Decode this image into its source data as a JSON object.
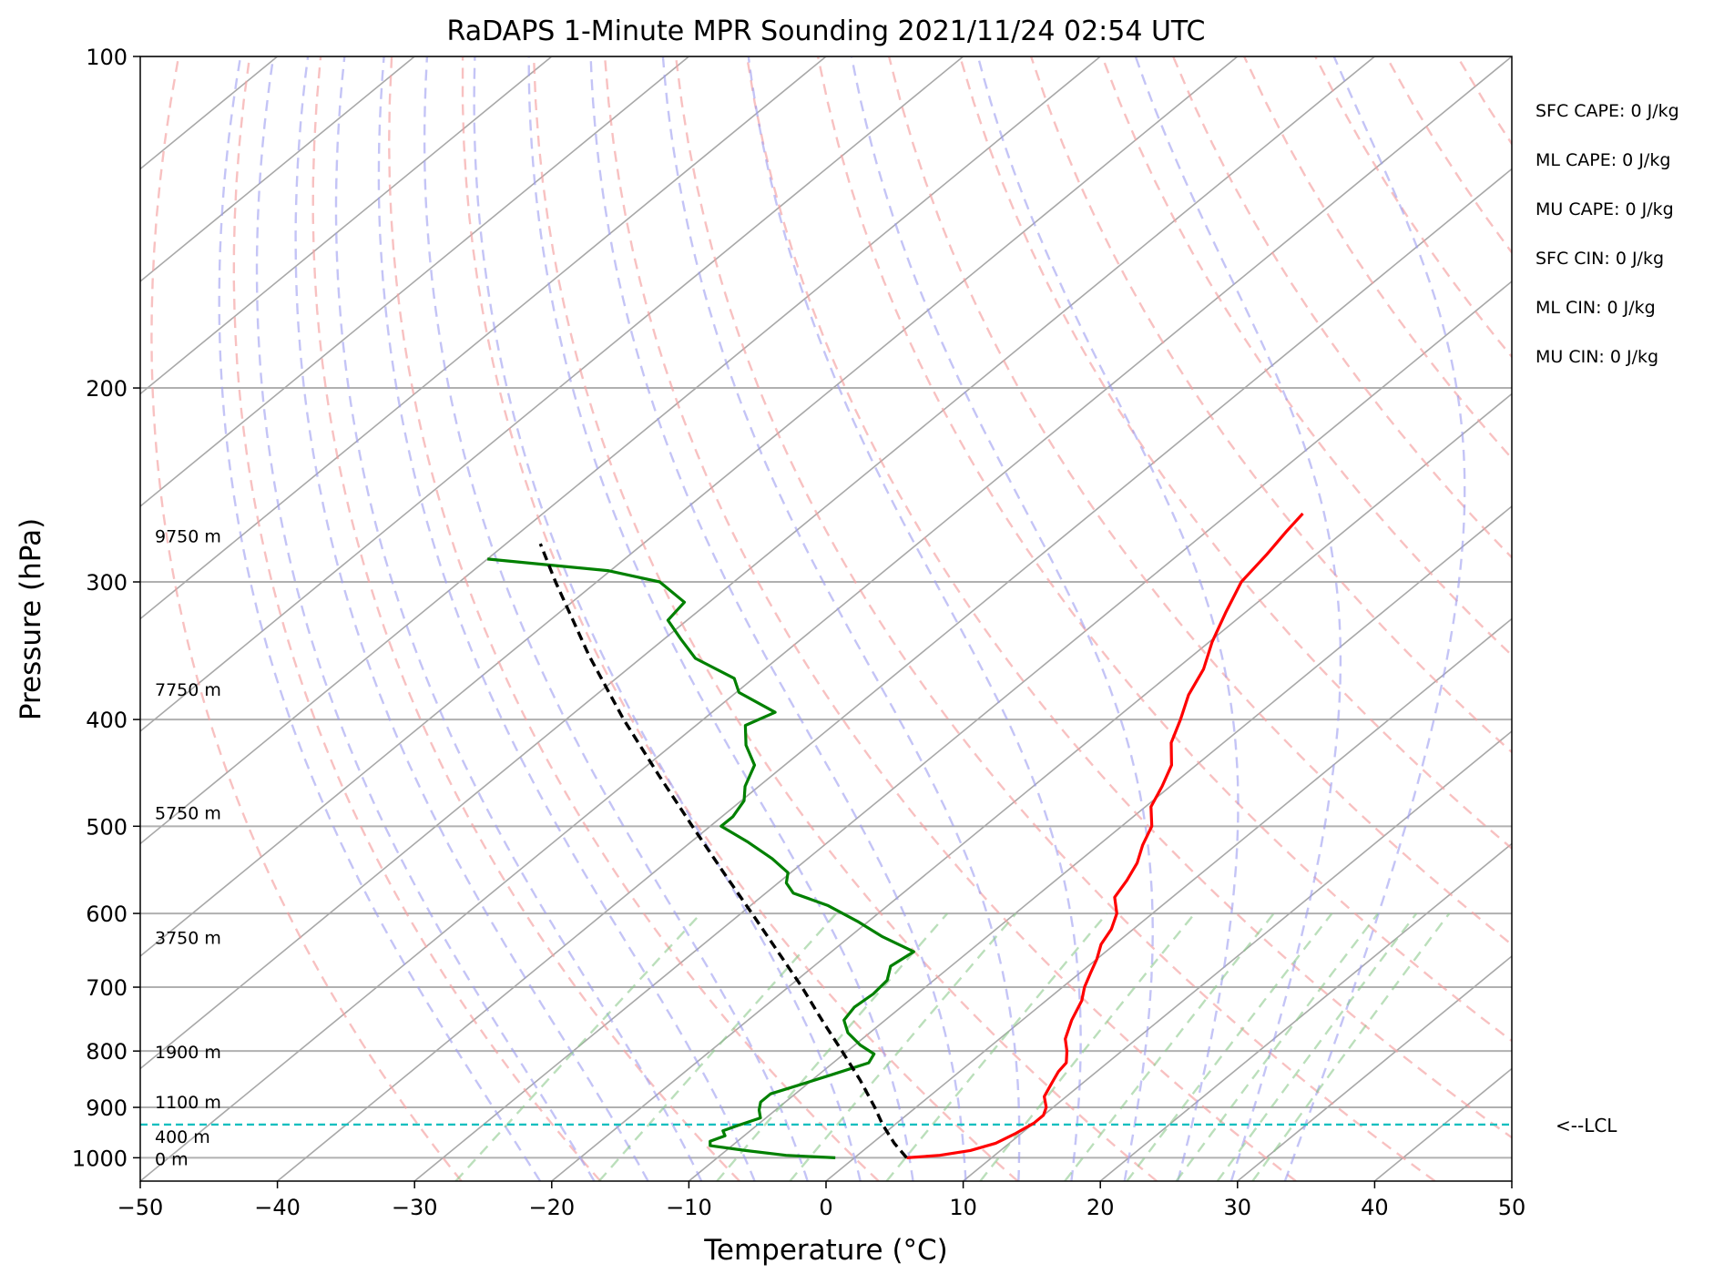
{
  "chart_data": {
    "type": "line",
    "title": "RaDAPS 1-Minute MPR Sounding 2021/11/24 02:54 UTC",
    "xlabel": "Temperature (°C)",
    "ylabel": "Pressure (hPa)",
    "xlim": [
      -50,
      50
    ],
    "ylim": [
      1050,
      100
    ],
    "y_scale": "log",
    "skew": true,
    "grid": true,
    "x_ticks": [
      "−50",
      "−40",
      "−30",
      "−20",
      "−10",
      "0",
      "10",
      "20",
      "30",
      "40",
      "50"
    ],
    "y_ticks": [
      "100",
      "200",
      "300",
      "400",
      "500",
      "600",
      "700",
      "800",
      "900",
      "1000"
    ],
    "height_labels": [
      {
        "p": 1000,
        "text": "0 m"
      },
      {
        "p": 955,
        "text": "400 m"
      },
      {
        "p": 888,
        "text": "1100 m"
      },
      {
        "p": 800,
        "text": "1900 m"
      },
      {
        "p": 630,
        "text": "3750 m"
      },
      {
        "p": 485,
        "text": "5750 m"
      },
      {
        "p": 375,
        "text": "7750 m"
      },
      {
        "p": 272,
        "text": "9750 m"
      }
    ],
    "indices": [
      "SFC CAPE: 0 J/kg",
      "ML CAPE: 0 J/kg",
      "MU CAPE: 0 J/kg",
      "SFC CIN: 0 J/kg",
      "ML CIN: 0 J/kg",
      "MU CIN: 0 J/kg"
    ],
    "lcl": {
      "p": 933,
      "label": "<--LCL"
    },
    "series": [
      {
        "color": "#ff0000",
        "points": [
          [
            1000,
            3.8
          ],
          [
            995,
            6.0
          ],
          [
            985,
            7.8
          ],
          [
            970,
            9.0
          ],
          [
            950,
            9.6
          ],
          [
            930,
            10.0
          ],
          [
            915,
            10.0
          ],
          [
            900,
            9.5
          ],
          [
            880,
            8.4
          ],
          [
            865,
            8.0
          ],
          [
            850,
            7.6
          ],
          [
            835,
            7.2
          ],
          [
            820,
            7.0
          ],
          [
            800,
            6.0
          ],
          [
            780,
            4.8
          ],
          [
            750,
            3.6
          ],
          [
            720,
            2.6
          ],
          [
            700,
            1.6
          ],
          [
            680,
            0.8
          ],
          [
            660,
            0.0
          ],
          [
            640,
            -1.0
          ],
          [
            620,
            -1.6
          ],
          [
            600,
            -2.6
          ],
          [
            580,
            -4.2
          ],
          [
            560,
            -4.8
          ],
          [
            540,
            -5.6
          ],
          [
            520,
            -6.8
          ],
          [
            500,
            -7.8
          ],
          [
            480,
            -9.6
          ],
          [
            460,
            -10.6
          ],
          [
            440,
            -11.8
          ],
          [
            420,
            -13.8
          ],
          [
            400,
            -15.2
          ],
          [
            380,
            -16.8
          ],
          [
            360,
            -18.0
          ],
          [
            340,
            -19.8
          ],
          [
            320,
            -21.4
          ],
          [
            300,
            -23.0
          ],
          [
            283,
            -23.6
          ],
          [
            270,
            -24.2
          ],
          [
            260,
            -24.6
          ]
        ]
      },
      {
        "color": "#008000",
        "points": [
          [
            1000,
            -1.4
          ],
          [
            995,
            -5.2
          ],
          [
            985,
            -8.6
          ],
          [
            975,
            -11.6
          ],
          [
            966,
            -12.0
          ],
          [
            955,
            -11.4
          ],
          [
            945,
            -12.0
          ],
          [
            935,
            -11.4
          ],
          [
            920,
            -10.4
          ],
          [
            905,
            -11.2
          ],
          [
            890,
            -11.8
          ],
          [
            875,
            -11.8
          ],
          [
            860,
            -10.6
          ],
          [
            840,
            -9.0
          ],
          [
            820,
            -7.4
          ],
          [
            805,
            -7.8
          ],
          [
            790,
            -9.6
          ],
          [
            770,
            -11.6
          ],
          [
            750,
            -13.0
          ],
          [
            730,
            -13.4
          ],
          [
            710,
            -13.2
          ],
          [
            690,
            -13.4
          ],
          [
            670,
            -14.4
          ],
          [
            650,
            -14.0
          ],
          [
            630,
            -17.6
          ],
          [
            610,
            -20.8
          ],
          [
            590,
            -24.4
          ],
          [
            575,
            -28.0
          ],
          [
            563,
            -29.4
          ],
          [
            551,
            -30.2
          ],
          [
            535,
            -32.6
          ],
          [
            517,
            -35.8
          ],
          [
            500,
            -39.2
          ],
          [
            490,
            -39.2
          ],
          [
            474,
            -39.8
          ],
          [
            460,
            -41.0
          ],
          [
            440,
            -42.2
          ],
          [
            422,
            -44.6
          ],
          [
            405,
            -46.4
          ],
          [
            394,
            -45.4
          ],
          [
            378,
            -49.8
          ],
          [
            367,
            -51.4
          ],
          [
            352,
            -56.0
          ],
          [
            338,
            -58.8
          ],
          [
            325,
            -61.4
          ],
          [
            313,
            -61.8
          ],
          [
            300,
            -65.4
          ],
          [
            293,
            -70.2
          ],
          [
            286,
            -80.0
          ]
        ]
      },
      {
        "color": "#000000",
        "dashed": true,
        "points": [
          [
            1000,
            3.8
          ],
          [
            970,
            1.6
          ],
          [
            933,
            -0.9
          ],
          [
            900,
            -3.0
          ],
          [
            850,
            -6.5
          ],
          [
            800,
            -10.4
          ],
          [
            750,
            -14.6
          ],
          [
            700,
            -19.0
          ],
          [
            650,
            -23.9
          ],
          [
            600,
            -29.2
          ],
          [
            550,
            -35.0
          ],
          [
            500,
            -41.3
          ],
          [
            450,
            -48.2
          ],
          [
            400,
            -55.8
          ],
          [
            350,
            -64.0
          ],
          [
            300,
            -73.0
          ],
          [
            277,
            -77.5
          ]
        ]
      }
    ]
  }
}
